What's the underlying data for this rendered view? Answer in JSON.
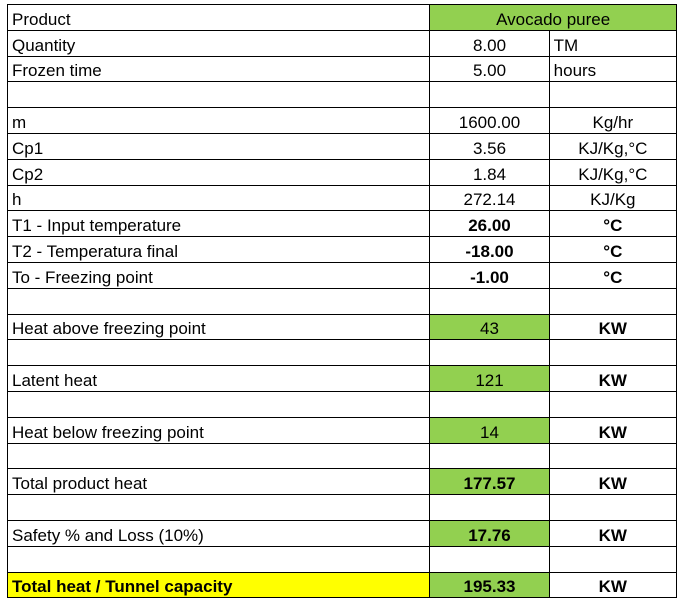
{
  "sheet": {
    "rows": [
      {
        "label": "Product",
        "value": "Avocado puree",
        "unit": "",
        "value_style": "green span",
        "bold": false
      },
      {
        "label": "Quantity",
        "value": "8.00",
        "unit": "TM",
        "value_style": "",
        "bold": false
      },
      {
        "label": "Frozen time",
        "value": "5.00",
        "unit": "hours",
        "value_style": "",
        "bold": false
      },
      {
        "gap": true
      },
      {
        "label": "m",
        "value": "1600.00",
        "unit": "Kg/hr",
        "value_style": "",
        "bold": false
      },
      {
        "label": "Cp1",
        "value": "3.56",
        "unit": "KJ/Kg,°C",
        "value_style": "",
        "bold": false
      },
      {
        "label": "Cp2",
        "value": "1.84",
        "unit": "KJ/Kg,°C",
        "value_style": "",
        "bold": false
      },
      {
        "label": "h",
        "value": "272.14",
        "unit": "KJ/Kg",
        "value_style": "",
        "bold": false
      },
      {
        "label": "T1 - Input temperature",
        "value": "26.00",
        "unit": "°C",
        "value_style": "",
        "bold": true
      },
      {
        "label": "T2 - Temperatura final",
        "value": "-18.00",
        "unit": "°C",
        "value_style": "",
        "bold": true
      },
      {
        "label": "To - Freezing point",
        "value": "-1.00",
        "unit": "°C",
        "value_style": "",
        "bold": true
      },
      {
        "gap": true
      },
      {
        "label": "Heat above freezing point",
        "value": "43",
        "unit": "KW",
        "value_style": "green",
        "bold": false
      },
      {
        "gap": true
      },
      {
        "label": "Latent heat",
        "value": "121",
        "unit": "KW",
        "value_style": "green",
        "bold": false
      },
      {
        "gap": true
      },
      {
        "label": "Heat below freezing point",
        "value": "14",
        "unit": "KW",
        "value_style": "green",
        "bold": false
      },
      {
        "gap": true
      },
      {
        "label": "Total product heat",
        "value": "177.57",
        "unit": "KW",
        "value_style": "green",
        "bold": true
      },
      {
        "gap": true
      },
      {
        "label": "Safety % and Loss (10%)",
        "value": "17.76",
        "unit": "KW",
        "value_style": "green",
        "bold": true
      },
      {
        "gap": true
      },
      {
        "label": "Total heat / Tunnel capacity",
        "value": "195.33",
        "unit": "KW",
        "value_style": "green",
        "bold": true,
        "label_style": "yellow"
      }
    ]
  },
  "colors": {
    "green": "#92d050",
    "yellow": "#ffff00"
  }
}
